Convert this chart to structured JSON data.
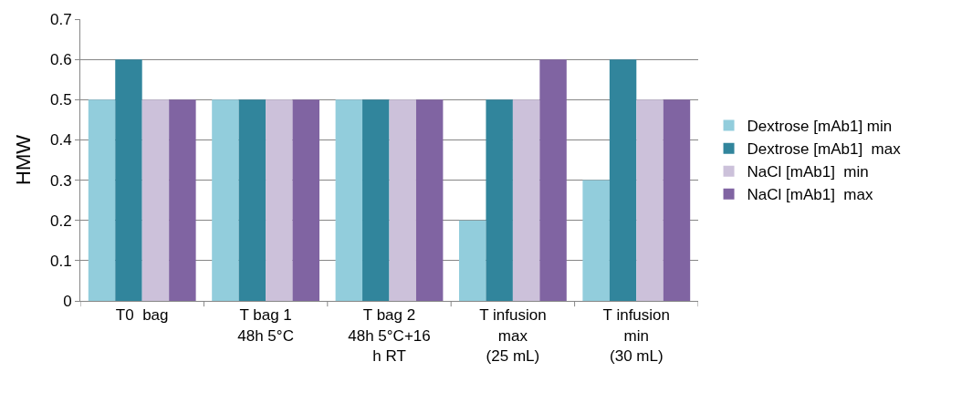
{
  "chart_data": {
    "type": "bar",
    "ylabel": "HMW",
    "categories": [
      "T0  bag",
      "T bag 1\n48h 5°C",
      "T bag 2\n48h 5°C+16\nh RT",
      "T infusion\nmax\n(25 mL)",
      "T infusion\nmin\n(30 mL)"
    ],
    "series": [
      {
        "name": "Dextrose [mAb1] min",
        "color": "#92cddc",
        "values": [
          0.5,
          0.5,
          0.5,
          0.2,
          0.3
        ]
      },
      {
        "name": "Dextrose [mAb1]  max",
        "color": "#31859c",
        "values": [
          0.6,
          0.5,
          0.5,
          0.5,
          0.6
        ]
      },
      {
        "name": "NaCl [mAb1]  min",
        "color": "#ccc1da",
        "values": [
          0.5,
          0.5,
          0.5,
          0.5,
          0.5
        ]
      },
      {
        "name": "NaCl [mAb1]  max",
        "color": "#8064a2",
        "values": [
          0.5,
          0.5,
          0.5,
          0.6,
          0.5
        ]
      }
    ],
    "ylim": [
      0,
      0.7
    ],
    "yticks": [
      0,
      0.1,
      0.2,
      0.3,
      0.4,
      0.5,
      0.6,
      0.7
    ],
    "grid": "y",
    "legend": "right"
  }
}
